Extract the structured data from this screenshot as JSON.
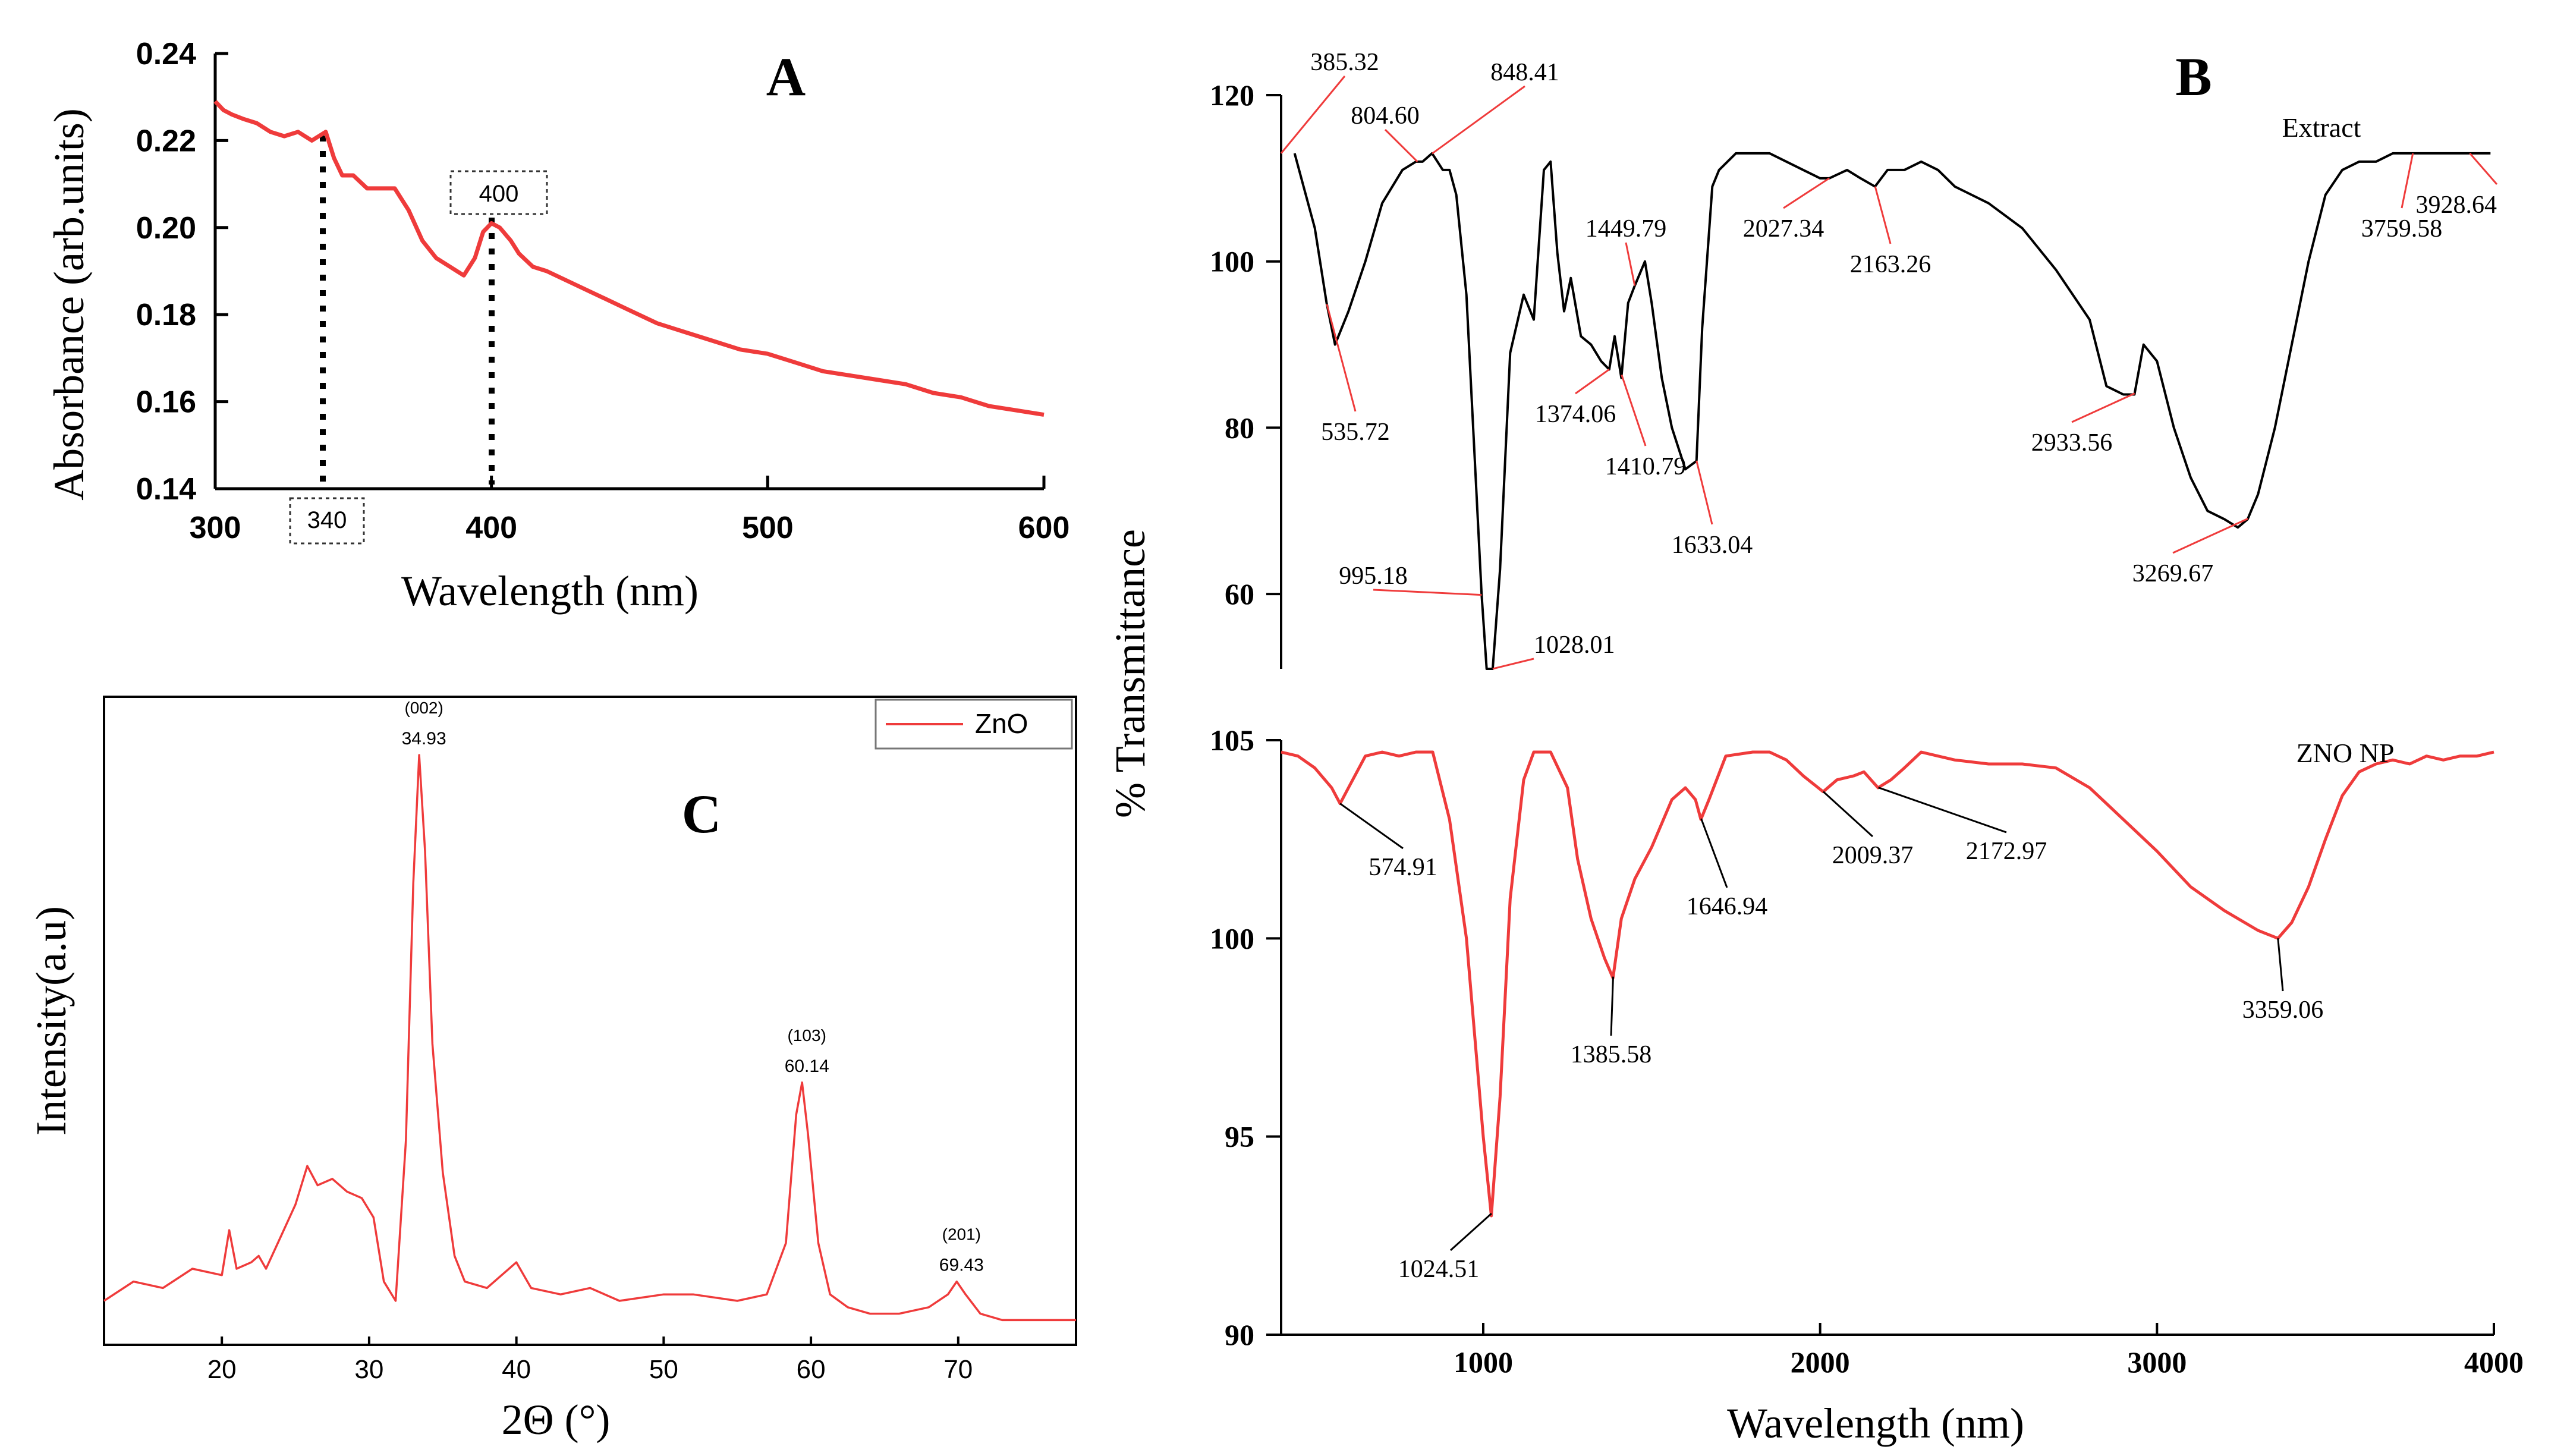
{
  "panels": {
    "A": "A",
    "B": "B",
    "C": "C"
  },
  "colors": {
    "red": "#ef3b3b",
    "black": "#000000"
  },
  "chart_data": [
    {
      "id": "A",
      "type": "line",
      "title": "A",
      "xlabel": "Wavelength (nm)",
      "ylabel": "Absorbance (arb.units)",
      "xlim": [
        300,
        600
      ],
      "ylim": [
        0.14,
        0.24
      ],
      "xticks": [
        300,
        400,
        500,
        600
      ],
      "xtick_labels": [
        "300",
        "400",
        "500",
        "600"
      ],
      "yticks": [
        0.14,
        0.16,
        0.18,
        0.2,
        0.22,
        0.24
      ],
      "ytick_labels": [
        "0.14",
        "0.16",
        "0.18",
        "0.20",
        "0.22",
        "0.24"
      ],
      "annotations": [
        {
          "x": 340,
          "label": "340"
        },
        {
          "x": 400,
          "label": "400"
        }
      ],
      "series": [
        {
          "name": "Absorbance",
          "color": "#ef3b3b",
          "x": [
            300,
            303,
            306,
            310,
            315,
            320,
            325,
            330,
            335,
            340,
            343,
            346,
            350,
            355,
            360,
            365,
            370,
            375,
            380,
            385,
            390,
            394,
            397,
            400,
            403,
            407,
            410,
            415,
            420,
            430,
            440,
            450,
            460,
            470,
            480,
            490,
            500,
            510,
            520,
            530,
            540,
            550,
            560,
            570,
            580,
            590,
            600
          ],
          "y": [
            0.229,
            0.227,
            0.226,
            0.225,
            0.224,
            0.222,
            0.221,
            0.222,
            0.22,
            0.222,
            0.216,
            0.212,
            0.212,
            0.209,
            0.209,
            0.209,
            0.204,
            0.197,
            0.193,
            0.191,
            0.189,
            0.193,
            0.199,
            0.201,
            0.2,
            0.197,
            0.194,
            0.191,
            0.19,
            0.187,
            0.184,
            0.181,
            0.178,
            0.176,
            0.174,
            0.172,
            0.171,
            0.169,
            0.167,
            0.166,
            0.165,
            0.164,
            0.162,
            0.161,
            0.159,
            0.158,
            0.157
          ]
        }
      ]
    },
    {
      "id": "B-top",
      "type": "line",
      "title": "B",
      "ylabel": "% Transmittance",
      "xlim": [
        400,
        4000
      ],
      "ylim": [
        51,
        120
      ],
      "yticks": [
        60,
        80,
        100,
        120
      ],
      "ytick_labels": [
        "60",
        "80",
        "100",
        "120"
      ],
      "legend": "Extract",
      "series": [
        {
          "name": "Extract",
          "color": "#000000",
          "x": [
            440,
            460,
            500,
            535,
            560,
            600,
            650,
            700,
            760,
            800,
            820,
            848,
            880,
            900,
            920,
            950,
            980,
            995,
            1010,
            1028,
            1050,
            1080,
            1120,
            1150,
            1180,
            1200,
            1220,
            1240,
            1260,
            1290,
            1320,
            1350,
            1374,
            1390,
            1410,
            1430,
            1449,
            1480,
            1500,
            1530,
            1560,
            1600,
            1633,
            1650,
            1680,
            1700,
            1750,
            1800,
            1850,
            1900,
            1950,
            2000,
            2027,
            2080,
            2120,
            2163,
            2200,
            2250,
            2300,
            2350,
            2400,
            2500,
            2600,
            2700,
            2800,
            2850,
            2900,
            2933,
            2960,
            3000,
            3050,
            3100,
            3150,
            3200,
            3240,
            3269,
            3300,
            3350,
            3400,
            3450,
            3500,
            3550,
            3600,
            3650,
            3700,
            3759,
            3800,
            3850,
            3900,
            3928,
            3950,
            3990
          ],
          "y": [
            113,
            110,
            104,
            95,
            90,
            94,
            100,
            107,
            111,
            112,
            112,
            113,
            111,
            111,
            108,
            96,
            72,
            60,
            51,
            51,
            63,
            89,
            96,
            93,
            111,
            112,
            101,
            94,
            98,
            91,
            90,
            88,
            87,
            91,
            86,
            95,
            97,
            100,
            95,
            86,
            80,
            75,
            76,
            92,
            109,
            111,
            113,
            113,
            113,
            112,
            111,
            110,
            110,
            111,
            110,
            109,
            111,
            111,
            112,
            111,
            109,
            107,
            104,
            99,
            93,
            85,
            84,
            84,
            90,
            88,
            80,
            74,
            70,
            69,
            68,
            69,
            72,
            80,
            90,
            100,
            108,
            111,
            112,
            112,
            113,
            113,
            113,
            113,
            113,
            113,
            113,
            113
          ]
        }
      ],
      "peak_labels": [
        {
          "x": 385.32,
          "label": "385.32"
        },
        {
          "x": 848.41,
          "label": "848.41"
        },
        {
          "x": 804.6,
          "label": "804.60"
        },
        {
          "x": 1449.79,
          "label": "1449.79"
        },
        {
          "x": 2027.34,
          "label": "2027.34"
        },
        {
          "x": 2163.26,
          "label": "2163.26"
        },
        {
          "x": 535.72,
          "label": "535.72"
        },
        {
          "x": 1374.06,
          "label": "1374.06"
        },
        {
          "x": 1410.79,
          "label": "1410.79"
        },
        {
          "x": 1633.04,
          "label": "1633.04"
        },
        {
          "x": 995.18,
          "label": "995.18"
        },
        {
          "x": 1028.01,
          "label": "1028.01"
        },
        {
          "x": 2933.56,
          "label": "2933.56"
        },
        {
          "x": 3269.67,
          "label": "3269.67"
        },
        {
          "x": 3759.58,
          "label": "3759.58"
        },
        {
          "x": 3928.64,
          "label": "3928.64"
        }
      ]
    },
    {
      "id": "B-bottom",
      "type": "line",
      "xlabel": "Wavelength (nm)",
      "xlim": [
        400,
        4000
      ],
      "ylim": [
        90,
        105
      ],
      "xticks": [
        1000,
        2000,
        3000,
        4000
      ],
      "xtick_labels": [
        "1000",
        "2000",
        "3000",
        "4000"
      ],
      "yticks": [
        90,
        95,
        100,
        105
      ],
      "ytick_labels": [
        "90",
        "95",
        "100",
        "105"
      ],
      "legend": "ZNO NP",
      "series": [
        {
          "name": "ZNO NP",
          "color": "#ef3b3b",
          "x": [
            400,
            450,
            500,
            550,
            575,
            600,
            650,
            700,
            750,
            800,
            850,
            900,
            950,
            980,
            1000,
            1024,
            1050,
            1080,
            1120,
            1150,
            1200,
            1250,
            1280,
            1320,
            1360,
            1385,
            1410,
            1450,
            1500,
            1560,
            1600,
            1630,
            1646,
            1670,
            1720,
            1800,
            1850,
            1900,
            1950,
            2009,
            2050,
            2100,
            2130,
            2172,
            2210,
            2250,
            2300,
            2350,
            2400,
            2500,
            2600,
            2700,
            2800,
            2900,
            3000,
            3100,
            3200,
            3300,
            3359,
            3400,
            3450,
            3500,
            3550,
            3600,
            3650,
            3700,
            3750,
            3800,
            3850,
            3900,
            3950,
            4000
          ],
          "y": [
            104.7,
            104.6,
            104.3,
            103.8,
            103.4,
            103.8,
            104.6,
            104.7,
            104.6,
            104.7,
            104.7,
            103.0,
            100.0,
            97.0,
            95.0,
            93.0,
            96.0,
            101.0,
            104.0,
            104.7,
            104.7,
            103.8,
            102.0,
            100.5,
            99.5,
            99.0,
            100.5,
            101.5,
            102.3,
            103.5,
            103.8,
            103.5,
            103.0,
            103.5,
            104.6,
            104.7,
            104.7,
            104.5,
            104.1,
            103.7,
            104.0,
            104.1,
            104.2,
            103.8,
            104.0,
            104.3,
            104.7,
            104.6,
            104.5,
            104.4,
            104.4,
            104.3,
            103.8,
            103.0,
            102.2,
            101.3,
            100.7,
            100.2,
            100.0,
            100.4,
            101.3,
            102.5,
            103.6,
            104.2,
            104.4,
            104.5,
            104.4,
            104.6,
            104.5,
            104.6,
            104.6,
            104.7
          ]
        }
      ],
      "peak_labels": [
        {
          "x": 574.91,
          "label": "574.91"
        },
        {
          "x": 1646.94,
          "label": "1646.94"
        },
        {
          "x": 2009.37,
          "label": "2009.37"
        },
        {
          "x": 2172.97,
          "label": "2172.97"
        },
        {
          "x": 1385.58,
          "label": "1385.58"
        },
        {
          "x": 3359.06,
          "label": "3359.06"
        },
        {
          "x": 1024.51,
          "label": "1024.51"
        }
      ]
    },
    {
      "id": "C",
      "type": "line",
      "title": "C",
      "xlabel": "2Θ (°)",
      "ylabel": "Intensity(a.u)",
      "xlim": [
        12,
        78
      ],
      "ylim": [
        0,
        100
      ],
      "xticks": [
        20,
        30,
        40,
        50,
        60,
        70
      ],
      "xtick_labels": [
        "20",
        "30",
        "40",
        "50",
        "60",
        "70"
      ],
      "legend": "ZnO",
      "peaks": [
        {
          "hkl": "(002)",
          "value": "34.93",
          "x": 33.4
        },
        {
          "hkl": "(103)",
          "value": "60.14",
          "x": 59.4
        },
        {
          "hkl": "(201)",
          "value": "69.43",
          "x": 69.9
        }
      ],
      "series": [
        {
          "name": "ZnO",
          "color": "#ef3b3b",
          "x": [
            12,
            14,
            16,
            18,
            20,
            20.5,
            21,
            22,
            22.5,
            23,
            24,
            25,
            25.8,
            26.5,
            27.5,
            28.5,
            29.5,
            30.3,
            31,
            31.8,
            32.5,
            33,
            33.4,
            33.8,
            34.3,
            35,
            35.8,
            36.5,
            38,
            40,
            41,
            43,
            45,
            47,
            50,
            52,
            55,
            57,
            58.3,
            59,
            59.4,
            59.8,
            60.5,
            61.3,
            62.5,
            64,
            66,
            68,
            69.3,
            69.9,
            70.5,
            71.5,
            73,
            75,
            78
          ],
          "y": [
            5,
            8,
            7,
            10,
            9,
            16,
            10,
            11,
            12,
            10,
            15,
            20,
            26,
            23,
            24,
            22,
            21,
            18,
            8,
            5,
            30,
            70,
            90,
            75,
            45,
            25,
            12,
            8,
            7,
            11,
            7,
            6,
            7,
            5,
            6,
            6,
            5,
            6,
            14,
            34,
            39,
            31,
            14,
            6,
            4,
            3,
            3,
            4,
            6,
            8,
            6,
            3,
            2,
            2,
            2
          ]
        }
      ]
    }
  ]
}
